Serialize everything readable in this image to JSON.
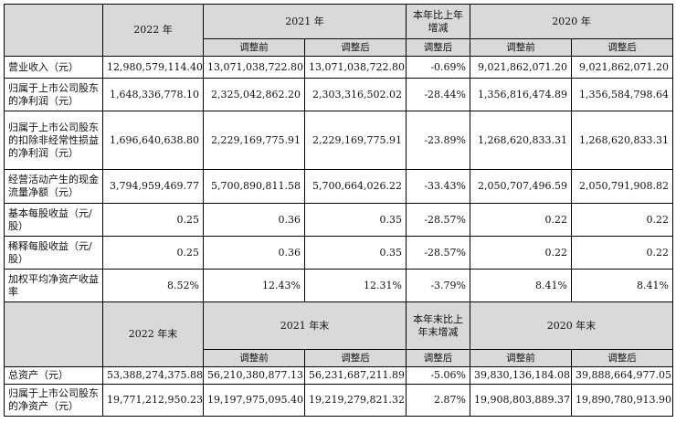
{
  "headers": {
    "y2022": "2022 年",
    "y2021": "2021 年",
    "yoy": "本年比上年增减",
    "y2020": "2020 年",
    "before_adj": "调整前",
    "after_adj": "调整后"
  },
  "rows": [
    {
      "label": "营业收入（元）",
      "v2022": "12,980,579,114.40",
      "v2021_before": "13,071,038,722.80",
      "v2021_after": "13,071,038,722.80",
      "yoy": "-0.69%",
      "v2020_before": "9,021,862,071.20",
      "v2020_after": "9,021,862,071.20"
    },
    {
      "label": "归属于上市公司股东的净利润（元）",
      "v2022": "1,648,336,778.10",
      "v2021_before": "2,325,042,862.20",
      "v2021_after": "2,303,316,502.02",
      "yoy": "-28.44%",
      "v2020_before": "1,356,816,474.89",
      "v2020_after": "1,356,584,798.64"
    },
    {
      "label": "归属于上市公司股东的扣除非经常性损益的净利润（元）",
      "v2022": "1,696,640,638.80",
      "v2021_before": "2,229,169,775.91",
      "v2021_after": "2,229,169,775.91",
      "yoy": "-23.89%",
      "v2020_before": "1,268,620,833.31",
      "v2020_after": "1,268,620,833.31"
    },
    {
      "label": "经营活动产生的现金流量净额（元）",
      "v2022": "3,794,959,469.77",
      "v2021_before": "5,700,890,811.58",
      "v2021_after": "5,700,664,026.22",
      "yoy": "-33.43%",
      "v2020_before": "2,050,707,496.59",
      "v2020_after": "2,050,791,908.82"
    },
    {
      "label": "基本每股收益（元/股）",
      "v2022": "0.25",
      "v2021_before": "0.36",
      "v2021_after": "0.35",
      "yoy": "-28.57%",
      "v2020_before": "0.22",
      "v2020_after": "0.22"
    },
    {
      "label": "稀释每股收益（元/股）",
      "v2022": "0.25",
      "v2021_before": "0.36",
      "v2021_after": "0.35",
      "yoy": "-28.57%",
      "v2020_before": "0.22",
      "v2020_after": "0.22"
    },
    {
      "label": "加权平均净资产收益率",
      "v2022": "8.52%",
      "v2021_before": "12.43%",
      "v2021_after": "12.31%",
      "yoy": "-3.79%",
      "v2020_before": "8.41%",
      "v2020_after": "8.41%"
    }
  ],
  "headers2": {
    "y2022": "2022 年末",
    "y2021": "2021 年末",
    "yoy": "本年末比上年末增减",
    "y2020": "2020 年末",
    "before_adj": "调整前",
    "after_adj": "调整后"
  },
  "rows2": [
    {
      "label": "总资产（元）",
      "v2022": "53,388,274,375.88",
      "v2021_before": "56,210,380,877.13",
      "v2021_after": "56,231,687,211.89",
      "yoy": "-5.06%",
      "v2020_before": "39,830,136,184.08",
      "v2020_after": "39,888,664,977.05"
    },
    {
      "label": "归属于上市公司股东的净资产（元）",
      "v2022": "19,771,212,950.23",
      "v2021_before": "19,197,975,095.40",
      "v2021_after": "19,219,279,821.32",
      "yoy": "2.87%",
      "v2020_before": "19,908,803,889.37",
      "v2020_after": "19,890,780,913.90"
    }
  ]
}
